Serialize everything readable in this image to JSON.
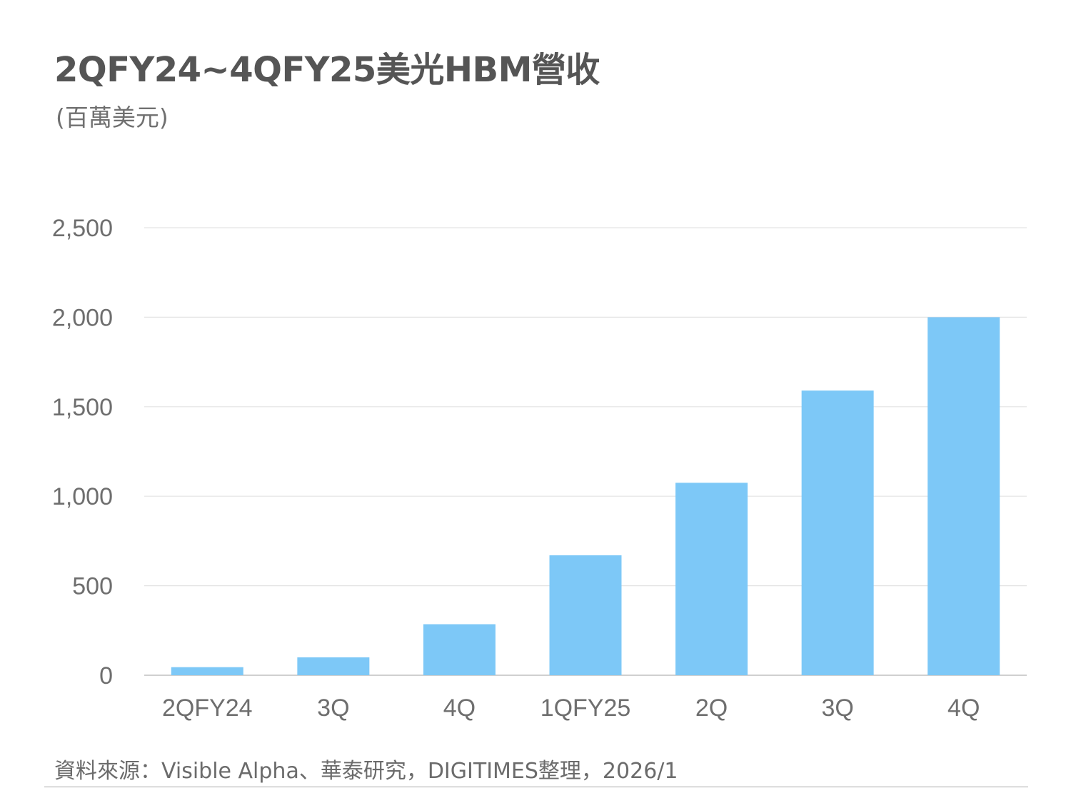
{
  "header": {
    "title": "2QFY24~4QFY25美光HBM營收",
    "unit": "(百萬美元)"
  },
  "chart_data": {
    "type": "bar",
    "title": "2QFY24~4QFY25美光HBM營收",
    "subtitle": "(百萬美元)",
    "xlabel": "",
    "ylabel": "",
    "categories": [
      "2QFY24",
      "3Q",
      "4Q",
      "1QFY25",
      "2Q",
      "3Q",
      "4Q"
    ],
    "values": [
      45,
      100,
      285,
      670,
      1075,
      1590,
      2000
    ],
    "ylim": [
      0,
      2500
    ],
    "yticks": [
      0,
      500,
      1000,
      1500,
      2000,
      2500
    ],
    "ytick_labels": [
      "0",
      "500",
      "1,000",
      "1,500",
      "2,000",
      "2,500"
    ],
    "grid": true,
    "legend": "none",
    "bar_color": "#7dc8f7",
    "grid_color": "#e3e3e3",
    "baseline_color": "#d0d0d0",
    "tick_label_color": "#6e6e6e"
  },
  "footer": {
    "source": "資料來源：Visible Alpha、華泰研究，DIGITIMES整理，2026/1"
  }
}
